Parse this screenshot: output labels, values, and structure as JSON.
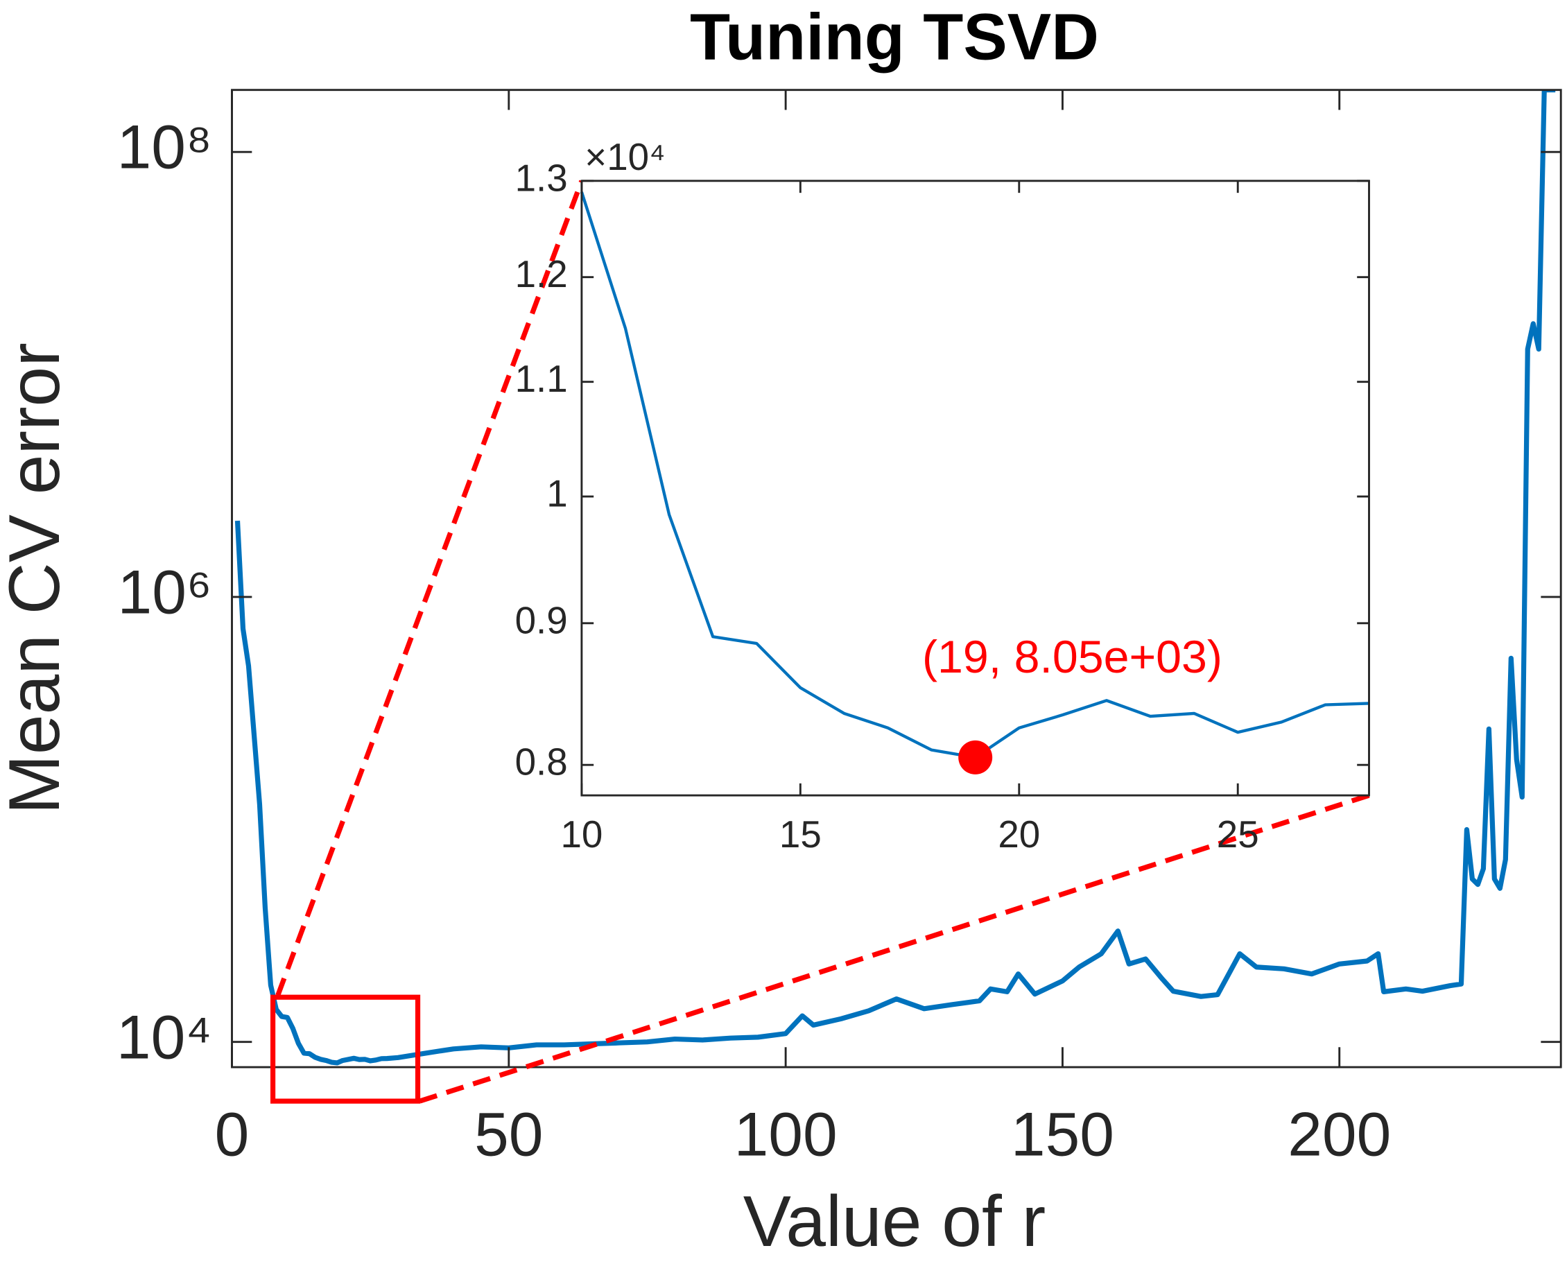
{
  "chart_data": [
    {
      "type": "line",
      "title": "Tuning TSVD",
      "xlabel": "Value of r",
      "ylabel": "Mean CV error",
      "xlim": [
        0,
        240
      ],
      "xticks": [
        0,
        50,
        100,
        150,
        200
      ],
      "ylog": true,
      "ylim": [
        7700,
        190000000
      ],
      "yticks": [
        {
          "value": 10000,
          "label": "10⁴"
        },
        {
          "value": 1000000,
          "label": "10⁶"
        },
        {
          "value": 100000000,
          "label": "10⁸"
        }
      ],
      "grid": false,
      "x": [
        1,
        2,
        3,
        4,
        5,
        6,
        7,
        8,
        9,
        10,
        11,
        12,
        13,
        14,
        15,
        16,
        17,
        18,
        19,
        20,
        21,
        22,
        23,
        24,
        25,
        26,
        27,
        28,
        30,
        35,
        40,
        45,
        50,
        55,
        60,
        65,
        70,
        75,
        80,
        85,
        90,
        95,
        100,
        103,
        105,
        110,
        115,
        120,
        125,
        130,
        135,
        137,
        140,
        142,
        145,
        150,
        153,
        157,
        160,
        162,
        165,
        168,
        170,
        175,
        178,
        182,
        185,
        190,
        195,
        200,
        205,
        207,
        208,
        212,
        215,
        220,
        222,
        223,
        224,
        225,
        226,
        227,
        228,
        229,
        230,
        231,
        232,
        233,
        234,
        235,
        236,
        237,
        238,
        239
      ],
      "series": [
        {
          "name": "Mean CV error",
          "color": "#0072BD",
          "values": [
            2200000,
            720000,
            490000,
            240000,
            117000,
            40000,
            18000,
            14000,
            13000,
            12880,
            11500,
            9850,
            8900,
            8850,
            8530,
            8350,
            8250,
            8100,
            8050,
            8250,
            8340,
            8440,
            8330,
            8350,
            8220,
            8290,
            8410,
            8420,
            8500,
            8900,
            9300,
            9500,
            9400,
            9700,
            9700,
            9800,
            9900,
            10000,
            10300,
            10200,
            10400,
            10500,
            10900,
            13100,
            11900,
            12700,
            13800,
            15600,
            14100,
            14700,
            15300,
            17300,
            16800,
            20200,
            16400,
            18800,
            21700,
            24900,
            31500,
            22400,
            23600,
            19200,
            16900,
            16000,
            16300,
            24900,
            21700,
            21300,
            20200,
            22400,
            23100,
            24900,
            16800,
            17300,
            16900,
            17900,
            18200,
            90000,
            54000,
            51000,
            60000,
            255000,
            54000,
            49000,
            66000,
            530000,
            186000,
            126000,
            13000000,
            16900000,
            13000000,
            190000000,
            190000000,
            190000000
          ]
        }
      ]
    },
    {
      "type": "line",
      "y_multiplier": "×10⁴",
      "xlim": [
        10,
        28
      ],
      "xticks": [
        10,
        15,
        20,
        25
      ],
      "ylog": true,
      "ylim": [
        7800,
        13000
      ],
      "yticks": [
        {
          "value": 8000,
          "label": "0.8"
        },
        {
          "value": 9000,
          "label": "0.9"
        },
        {
          "value": 10000,
          "label": "1"
        },
        {
          "value": 11000,
          "label": "1.1"
        },
        {
          "value": 12000,
          "label": "1.2"
        },
        {
          "value": 13000,
          "label": "1.3"
        }
      ],
      "grid": false,
      "x": [
        10,
        11,
        12,
        13,
        14,
        15,
        16,
        17,
        18,
        19,
        20,
        21,
        22,
        23,
        24,
        25,
        26,
        27,
        28
      ],
      "series": [
        {
          "name": "Mean CV error (zoom)",
          "color": "#0072BD",
          "values": [
            12880,
            11500,
            9850,
            8900,
            8850,
            8530,
            8350,
            8250,
            8100,
            8050,
            8250,
            8340,
            8440,
            8330,
            8350,
            8220,
            8290,
            8410,
            8420
          ]
        }
      ],
      "annotation": "(19, 8.05e+03)",
      "marker_color": "#FF0000"
    }
  ]
}
